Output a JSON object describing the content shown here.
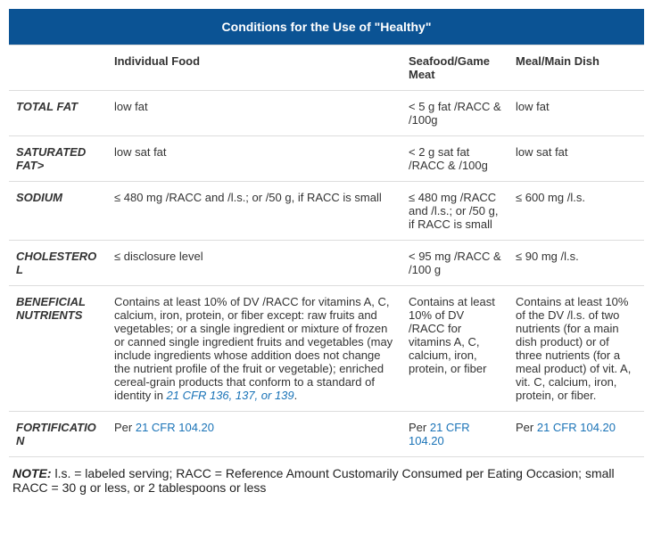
{
  "title": "Conditions for the Use of \"Healthy\"",
  "headers": [
    "",
    "Individual Food",
    "Seafood/Game Meat",
    "Meal/Main Dish"
  ],
  "rows": [
    {
      "label": "TOTAL FAT",
      "individual": "low fat",
      "seafood": "< 5 g fat /RACC & /100g",
      "meal": "low fat"
    },
    {
      "label": "SATURATED FAT>",
      "individual": "low sat fat",
      "seafood": "< 2 g sat fat /RACC & /100g",
      "meal": "low sat fat"
    },
    {
      "label": "SODIUM",
      "individual": "≤ 480 mg /RACC and /l.s.; or /50 g, if RACC is small",
      "seafood": "≤ 480 mg /RACC and /l.s.; or /50 g, if RACC is small",
      "meal": "≤ 600 mg /l.s."
    },
    {
      "label": "CHOLESTEROL",
      "individual": "≤ disclosure level",
      "seafood": "< 95 mg /RACC & /100 g",
      "meal": "≤ 90 mg /l.s."
    },
    {
      "label": "BENEFICIAL NUTRIENTS",
      "individual_pre": "Contains at least 10% of DV /RACC for vitamins A, C, calcium, iron, protein, or fiber except: raw fruits and vegetables; or a single ingredient or mixture of frozen or canned single ingredient fruits and vegetables (may include ingredients whose addition does not change the nutrient profile of the fruit or vegetable); enriched cereal-grain products that conform to a standard of identity in ",
      "individual_link": "21 CFR 136, 137, or 139",
      "individual_post": ".",
      "seafood": "Contains at least 10% of DV /RACC for vitamins A, C, calcium, iron, protein, or fiber",
      "meal": "Contains at least 10% of the DV /l.s. of two nutrients (for a main dish product) or of three nutrients (for a meal product) of vit. A, vit. C, calcium, iron, protein, or fiber."
    },
    {
      "label": "FORTIFICATION",
      "individual_pre": "Per ",
      "individual_link": "21 CFR 104.20",
      "seafood_pre": "Per ",
      "seafood_link": "21 CFR 104.20",
      "meal_pre": "Per ",
      "meal_link": "21 CFR 104.20"
    }
  ],
  "note": {
    "lead": "NOTE:",
    "text": " l.s. = labeled serving; RACC = Reference Amount Customarily Consumed per Eating Occasion; small RACC = 30 g or less, or 2 tablespoons or less"
  },
  "colors": {
    "header_bg": "#0b5394",
    "link": "#1a73b7",
    "border": "#dddddd"
  }
}
